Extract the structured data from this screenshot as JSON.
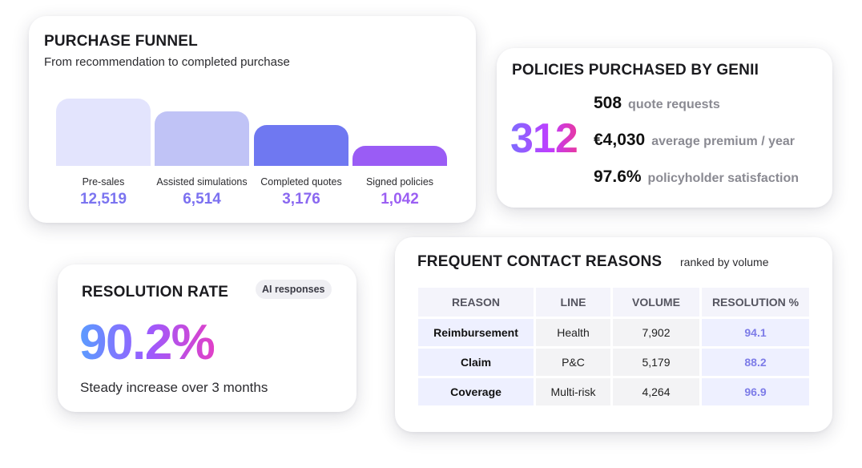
{
  "funnel": {
    "title": "PURCHASE FUNNEL",
    "subtitle": "From recommendation to completed purchase",
    "stages": [
      {
        "label": "Pre-sales",
        "value": "12,519",
        "count": 12519,
        "color": "#e3e4fd",
        "value_color": "#7b74f0"
      },
      {
        "label": "Assisted simulations",
        "value": "6,514",
        "count": 6514,
        "color": "#c0c3f6",
        "value_color": "#7b70f0"
      },
      {
        "label": "Completed quotes",
        "value": "3,176",
        "count": 3176,
        "color": "#6f78f1",
        "value_color": "#8a68f0"
      },
      {
        "label": "Signed policies",
        "value": "1,042",
        "count": 1042,
        "color": "#9a5cf5",
        "value_color": "#9b5ff3"
      }
    ]
  },
  "policies": {
    "title": "POLICIES PURCHASED BY GENII",
    "count": "312",
    "stats": [
      {
        "value": "508",
        "label": "quote requests"
      },
      {
        "value": "€4,030",
        "label": "average premium / year"
      },
      {
        "value": "97.6%",
        "label": "policyholder satisfaction"
      }
    ]
  },
  "resolution": {
    "title": "RESOLUTION RATE",
    "badge": "AI responses",
    "rate": "90.2%",
    "note": "Steady increase over 3 months"
  },
  "contacts": {
    "title": "FREQUENT CONTACT REASONS",
    "ranked_label": "ranked by volume",
    "columns": [
      "REASON",
      "LINE",
      "VOLUME",
      "RESOLUTION %"
    ],
    "rows": [
      {
        "reason": "Reimbursement",
        "line": "Health",
        "volume": "7,902",
        "resolution": "94.1"
      },
      {
        "reason": "Claim",
        "line": "P&C",
        "volume": "5,179",
        "resolution": "88.2"
      },
      {
        "reason": "Coverage",
        "line": "Multi-risk",
        "volume": "4,264",
        "resolution": "96.9"
      }
    ]
  }
}
